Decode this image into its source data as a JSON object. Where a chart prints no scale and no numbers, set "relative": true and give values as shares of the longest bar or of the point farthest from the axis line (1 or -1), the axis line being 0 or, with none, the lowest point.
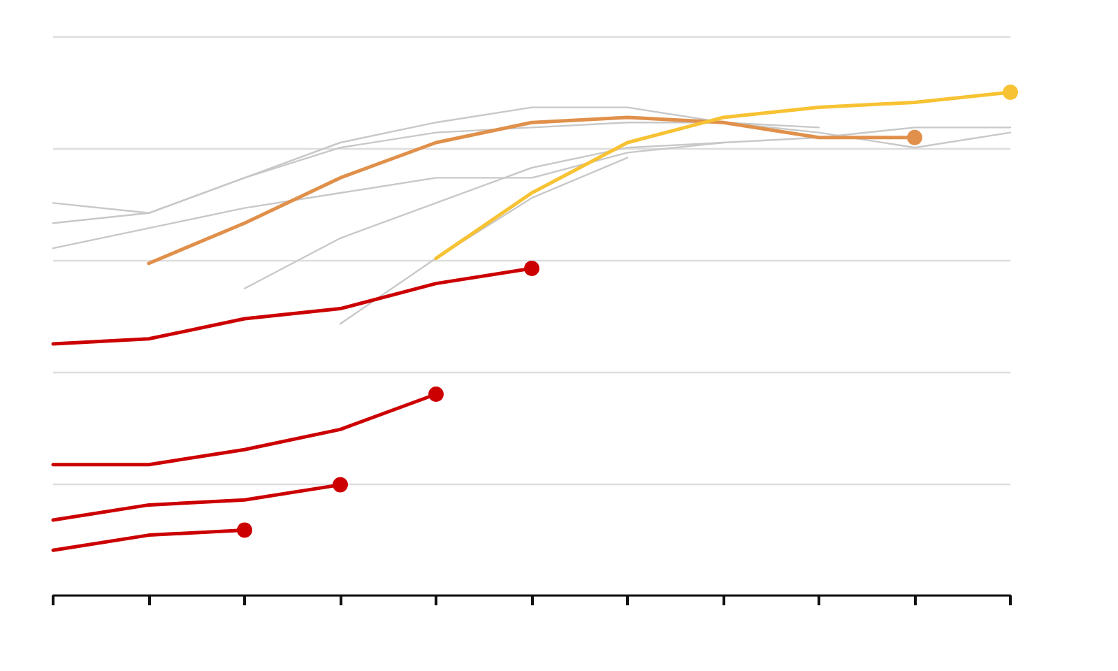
{
  "chart_data": {
    "type": "line",
    "relative": true,
    "grid": "y",
    "categories": [
      null,
      null,
      null,
      null,
      null,
      null,
      null,
      null,
      null,
      null,
      null
    ],
    "series": [
      {
        "color": "#c8c8c8",
        "marker": "none",
        "values": [
          0.78,
          0.76,
          0.83,
          0.9,
          0.94,
          0.97,
          0.97,
          0.94,
          0.93,
          null,
          null
        ]
      },
      {
        "color": "#c8c8c8",
        "marker": "none",
        "values": [
          0.74,
          0.76,
          0.83,
          0.89,
          0.92,
          0.93,
          0.94,
          0.94,
          0.92,
          0.89,
          0.92
        ]
      },
      {
        "color": "#c8c8c8",
        "marker": "none",
        "values": [
          0.69,
          0.73,
          0.77,
          0.8,
          0.83,
          0.83,
          0.88,
          0.9,
          0.91,
          0.93,
          0.93
        ]
      },
      {
        "color": "#c8c8c8",
        "marker": "none",
        "values": [
          null,
          null,
          0.61,
          0.71,
          0.78,
          0.85,
          0.89,
          0.9,
          null,
          null,
          null
        ]
      },
      {
        "color": "#c8c8c8",
        "marker": "none",
        "values": [
          null,
          null,
          null,
          0.54,
          0.67,
          0.79,
          0.87,
          null,
          null,
          null,
          null
        ]
      },
      {
        "color": "#e0904a",
        "marker": "none",
        "values": [
          null,
          0.66,
          0.74,
          0.83,
          0.9,
          0.94,
          0.95,
          0.94,
          0.91,
          0.91,
          null
        ]
      },
      {
        "color": "#f7c233",
        "marker": "none",
        "values": [
          null,
          null,
          null,
          null,
          0.67,
          0.8,
          0.9,
          0.95,
          0.97,
          0.98,
          1
        ]
      },
      {
        "color": "#cc0000",
        "marker": "none",
        "values": [
          0.5,
          0.51,
          0.55,
          0.57,
          0.62,
          0.65,
          null,
          null,
          null,
          null,
          null
        ]
      },
      {
        "color": "#cc0000",
        "marker": "none",
        "values": [
          0.26,
          0.26,
          0.29,
          0.33,
          0.4,
          null,
          null,
          null,
          null,
          null,
          null
        ]
      },
      {
        "color": "#cc0000",
        "marker": "none",
        "values": [
          0.15,
          0.18,
          0.19,
          0.22,
          null,
          null,
          null,
          null,
          null,
          null,
          null
        ]
      },
      {
        "color": "#cc0000",
        "marker": "none",
        "values": [
          0.09,
          0.12,
          0.13,
          null,
          null,
          null,
          null,
          null,
          null,
          null,
          null
        ]
      },
      {
        "color": "#e0904a",
        "marker": "circle",
        "values": [
          null,
          null,
          null,
          null,
          null,
          null,
          null,
          null,
          null,
          0.91,
          null
        ]
      },
      {
        "color": "#f7c233",
        "marker": "circle",
        "values": [
          null,
          null,
          null,
          null,
          null,
          null,
          null,
          null,
          null,
          null,
          1
        ]
      },
      {
        "color": "#cc0000",
        "marker": "circle",
        "values": [
          null,
          null,
          null,
          null,
          null,
          0.65,
          null,
          null,
          null,
          null,
          null
        ]
      },
      {
        "color": "#cc0000",
        "marker": "circle",
        "values": [
          null,
          null,
          null,
          null,
          0.4,
          null,
          null,
          null,
          null,
          null,
          null
        ]
      },
      {
        "color": "#cc0000",
        "marker": "circle",
        "values": [
          null,
          null,
          null,
          0.22,
          null,
          null,
          null,
          null,
          null,
          null,
          null
        ]
      },
      {
        "color": "#cc0000",
        "marker": "circle",
        "values": [
          null,
          null,
          0.13,
          null,
          null,
          null,
          null,
          null,
          null,
          null,
          null
        ]
      }
    ]
  }
}
